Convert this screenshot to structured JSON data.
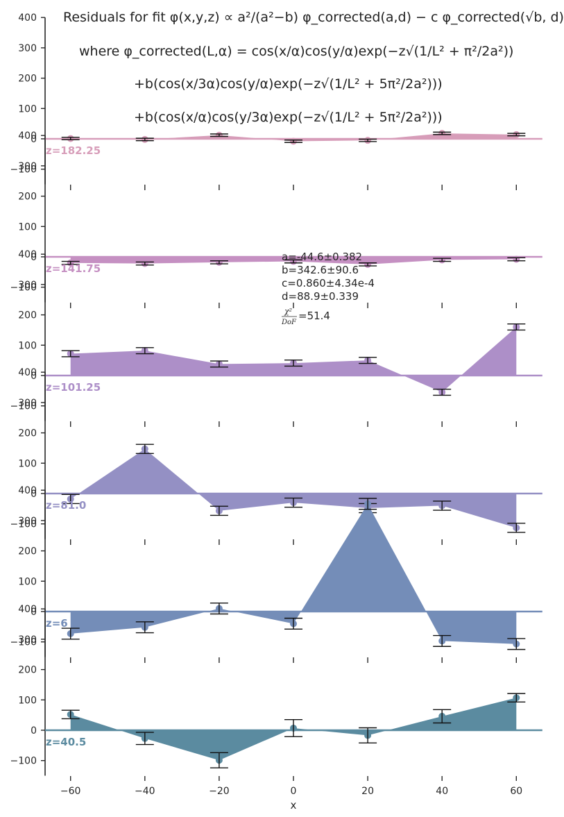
{
  "title_lines": [
    "Residuals for fit φ(x,y,z) ∝ a²/(a²−b) φ_corrected(a,d) − c φ_corrected(√b, d)",
    "where φ_corrected(L,α) = cos(x/α)cos(y/α)exp(−z√(1/L² + π²/2a²))",
    "+b(cos(x/3α)cos(y/α)exp(−z√(1/L² + 5π²/2a²)))",
    "+b(cos(x/α)cos(y/3α)exp(−z√(1/L² + 5π²/2a²)))"
  ],
  "fit_results": {
    "a": "a=-44.6±0.382",
    "b": "b=342.6±90.6",
    "c": "c=0.860±4.34e-4",
    "d": "d=88.9±0.339",
    "chi2": "=51.4"
  },
  "chart_data": {
    "type": "area",
    "xlabel": "x",
    "x": [
      -60,
      -40,
      -20,
      0,
      20,
      40,
      60
    ],
    "x_ticks": [
      "−60",
      "−40",
      "−20",
      "0",
      "20",
      "40",
      "60"
    ],
    "xlim": [
      -67,
      67
    ],
    "ylim": [
      -150,
      400
    ],
    "y_ticks": [
      {
        "value": 400,
        "label": "400"
      },
      {
        "value": 300,
        "label": "300"
      },
      {
        "value": 200,
        "label": "200"
      },
      {
        "value": 100,
        "label": "100"
      },
      {
        "value": 0,
        "label": "0"
      },
      {
        "value": -100,
        "label": "−100"
      }
    ],
    "grid": false,
    "series": [
      {
        "name": "z=182.25",
        "color": "#d79db9",
        "values": [
          1,
          -2,
          12,
          -8,
          -5,
          18,
          14
        ],
        "errors": [
          4,
          4,
          4,
          4,
          4,
          4,
          4
        ]
      },
      {
        "name": "z=141.75",
        "color": "#c590c2",
        "values": [
          -20,
          -22,
          -18,
          -15,
          -25,
          -10,
          -8
        ],
        "errors": [
          5,
          5,
          5,
          5,
          5,
          5,
          5
        ]
      },
      {
        "name": "z=101.25",
        "color": "#ad8fc8",
        "values": [
          72,
          82,
          38,
          41,
          50,
          -55,
          160
        ],
        "errors": [
          10,
          10,
          10,
          10,
          10,
          10,
          10
        ]
      },
      {
        "name": "z=81.0",
        "color": "#9490c4",
        "values": [
          -18,
          147,
          -57,
          -30,
          -48,
          -40,
          -113
        ],
        "errors": [
          15,
          15,
          15,
          15,
          15,
          15,
          15
        ]
      },
      {
        "name": "z=6",
        "color": "#748db8",
        "values": [
          -73,
          -52,
          10,
          -40,
          355,
          -97,
          -107
        ],
        "errors": [
          18,
          18,
          18,
          18,
          18,
          18,
          18
        ]
      },
      {
        "name": "z=40.5",
        "color": "#5b8ba0",
        "values": [
          52,
          -27,
          -99,
          7,
          -17,
          46,
          107
        ],
        "errors": [
          14,
          20,
          25,
          28,
          25,
          22,
          14
        ]
      }
    ]
  }
}
